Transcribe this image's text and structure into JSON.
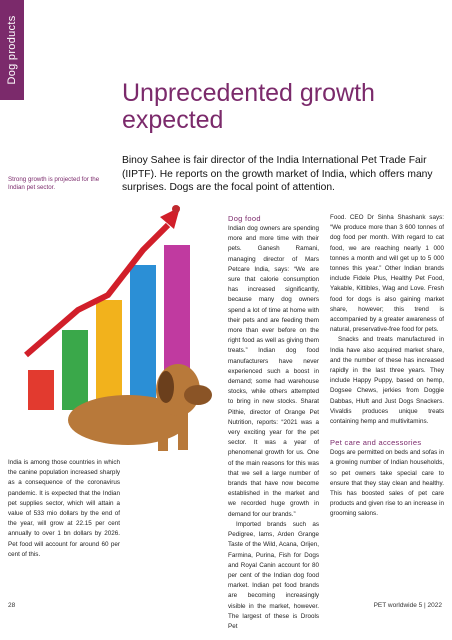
{
  "section_tab": "Dog products",
  "title": "Unprecedented growth expected",
  "sidebar_note": "Strong growth is projected for the Indian pet sector.",
  "intro": "Binoy Sahee is fair director of the India International Pet Trade Fair (IIPTF). He reports on the growth market of India, which offers many surprises. Dogs are the focal point of attention.",
  "column1": {
    "paragraphs": [
      "India is among those countries in which the canine population increased sharply as a consequence of the coronavirus pandemic. It is expected that the Indian pet supplies sector, which will attain a value of 533 mio dollars by the end of the year, will grow at 22.15 per cent annually to over 1 bn dollars by 2026. Pet food will account for around 60 per cent of this."
    ]
  },
  "column2": {
    "heading": "Dog food",
    "paragraphs": [
      "Indian dog owners are spending more and more time with their pets. Ganesh Ramani, managing director of Mars Petcare India, says: “We are sure that calorie consumption has increased significantly, because many dog owners spend a lot of time at home with their pets and are feeding them more than ever before on the right food as well as giving them treats.” Indian dog food manufacturers have never experienced such a boost in demand; some had warehouse stocks, while others attempted to bring in new stocks. Sharat Pithie, director of Orange Pet Nutrition, reports: “2021 was a very exciting year for the pet sector. It was a year of phenomenal growth for us. One of the main reasons for this was that we sell a large number of brands that have now become established in the market and we recorded huge growth in demand for our brands.”",
      "Imported brands such as Pedigree, Iams, Arden Grange Taste of the Wild, Acana, Orijen, Farmina, Purina, Fish for Dogs and Royal Canin account for 80 per cent of the Indian dog food market. Indian pet food brands are becoming increasingly visible in the market, however. The largest of these is Drools Pet"
    ]
  },
  "column3": {
    "paragraphs": [
      "Food. CEO Dr Sinha Shashank says: “We produce more than 3 600 tonnes of dog food per month. With regard to cat food, we are reaching nearly 1 000 tonnes a month and will get up to 5 000 tonnes this year.” Other Indian brands include Fidele Plus, Healthy Pet Food, Yakable, Kittibles, Wag and Love. Fresh food for dogs is also gaining market share, however; this trend is accompanied by a greater awareness of natural, preservative-free food for pets.",
      "Snacks and treats manufactured in India have also acquired market share, and the number of these has increased rapidly in the last three years. They include Happy Puppy, based on hemp, Dogsee Chews, jerkies from Doggie Dabbas, Hluft and Just Dogs Snackers. Vivaldis produces unique treats containing hemp and multivitamins."
    ],
    "heading": "Pet care and accessories",
    "paragraphs_after": [
      "Dogs are permitted on beds and sofas in a growing number of Indian households, so pet owners take special care to ensure that they stay clean and healthy. This has boosted sales of pet care products and given rise to an increase in grooming salons."
    ]
  },
  "footer": {
    "page_number": "28",
    "magazine": "PET worldwide 5 | 2022"
  }
}
